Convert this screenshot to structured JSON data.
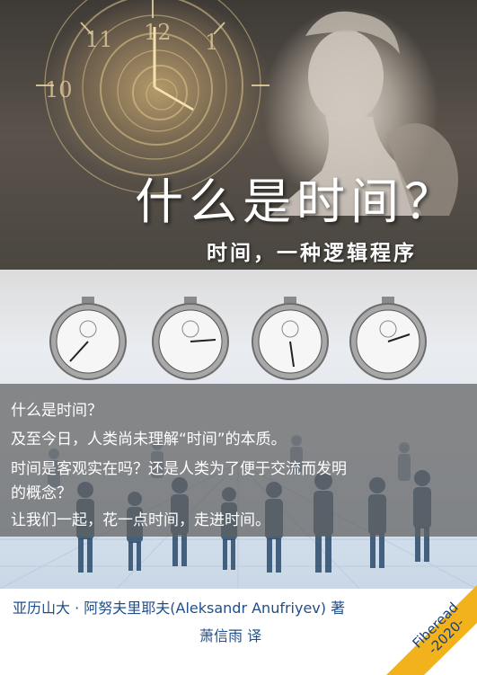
{
  "cover": {
    "title": "什么是时间？",
    "subtitle": "时间，一种逻辑程序",
    "intro_lines": [
      "什么是时间？",
      "及至今日，人类尚未理解“时间”的本质。",
      "时间是客观实在吗？还是人类为了便于交流而发明",
      "的概念？",
      "让我们一起，花一点时间，走进时间。"
    ],
    "author": "亚历山大 · 阿努夫里耶夫(Aleksandr Anufriyev) 著",
    "translator": "萧信雨 译",
    "publisher": {
      "name": "Fiberead",
      "year": "-2020-"
    },
    "colors": {
      "credit_text": "#1f4e8c",
      "ribbon": "#f2b21c",
      "band": "#5f5f5f"
    }
  }
}
